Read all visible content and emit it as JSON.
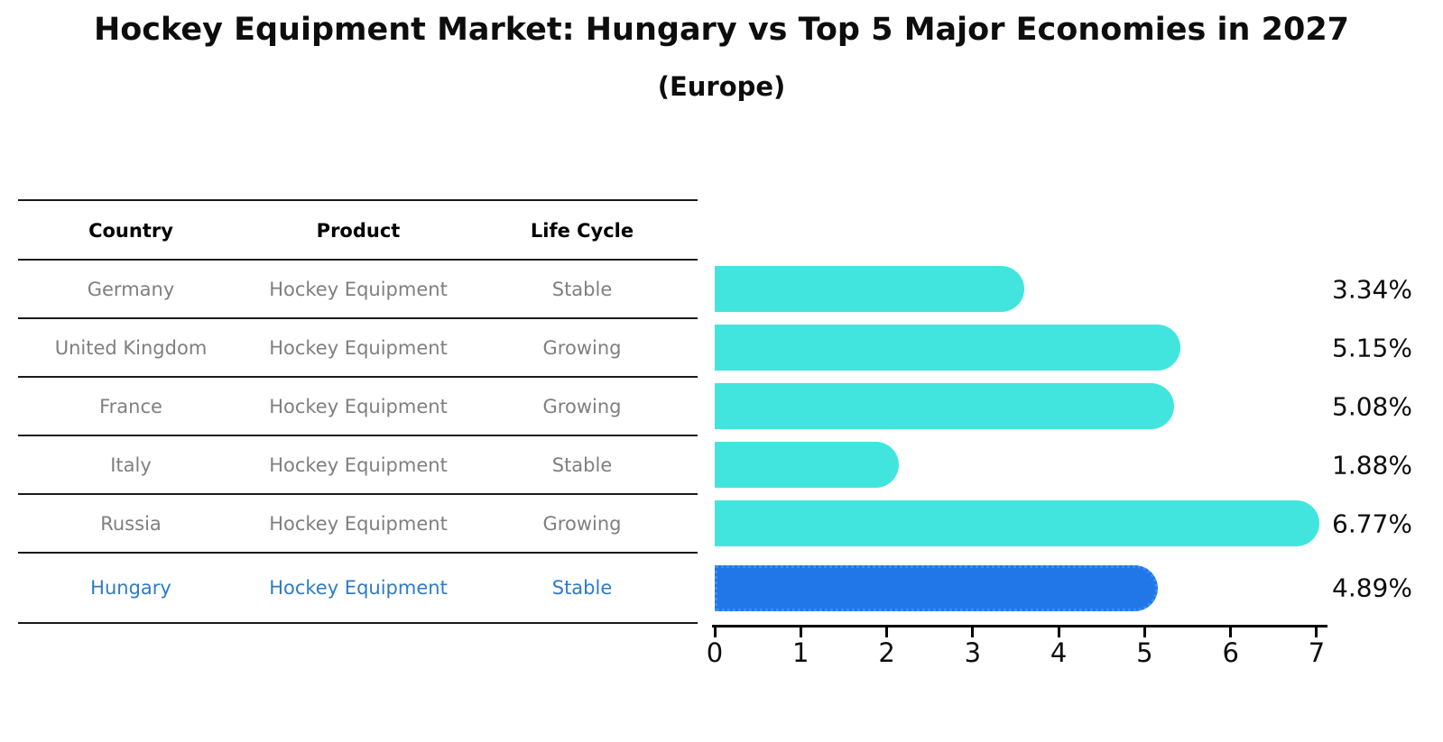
{
  "title": "Hockey Equipment Market: Hungary vs Top 5 Major Economies in 2027",
  "subtitle": "(Europe)",
  "table": {
    "headers": [
      "Country",
      "Product",
      "Life Cycle"
    ],
    "rows": [
      {
        "country": "Germany",
        "product": "Hockey Equipment",
        "life_cycle": "Stable",
        "highlight": false
      },
      {
        "country": "United Kingdom",
        "product": "Hockey Equipment",
        "life_cycle": "Growing",
        "highlight": false
      },
      {
        "country": "France",
        "product": "Hockey Equipment",
        "life_cycle": "Growing",
        "highlight": false
      },
      {
        "country": "Italy",
        "product": "Hockey Equipment",
        "life_cycle": "Stable",
        "highlight": false
      },
      {
        "country": "Russia",
        "product": "Hockey Equipment",
        "life_cycle": "Growing",
        "highlight": false
      },
      {
        "country": "Hungary",
        "product": "Hockey Equipment",
        "life_cycle": "Stable",
        "highlight": true
      }
    ]
  },
  "chart_data": {
    "type": "bar",
    "orientation": "horizontal",
    "categories": [
      "Germany",
      "United Kingdom",
      "France",
      "Italy",
      "Russia",
      "Hungary"
    ],
    "values": [
      3.34,
      5.15,
      5.08,
      1.88,
      6.77,
      4.89
    ],
    "value_labels": [
      "3.34%",
      "5.15%",
      "5.08%",
      "1.88%",
      "6.77%",
      "4.89%"
    ],
    "highlight_index": 5,
    "xlim": [
      0,
      7
    ],
    "x_ticks": [
      "0",
      "1",
      "2",
      "3",
      "4",
      "5",
      "6",
      "7"
    ],
    "grid": "off",
    "legend": "none",
    "bar_color": "#42E5DE",
    "highlight_bar_color": "#2176E8",
    "highlight_bar_edge_color": "#3E8EF0",
    "row_text_color": "#7f7f7f",
    "highlight_text_color": "#2e7bc6"
  }
}
